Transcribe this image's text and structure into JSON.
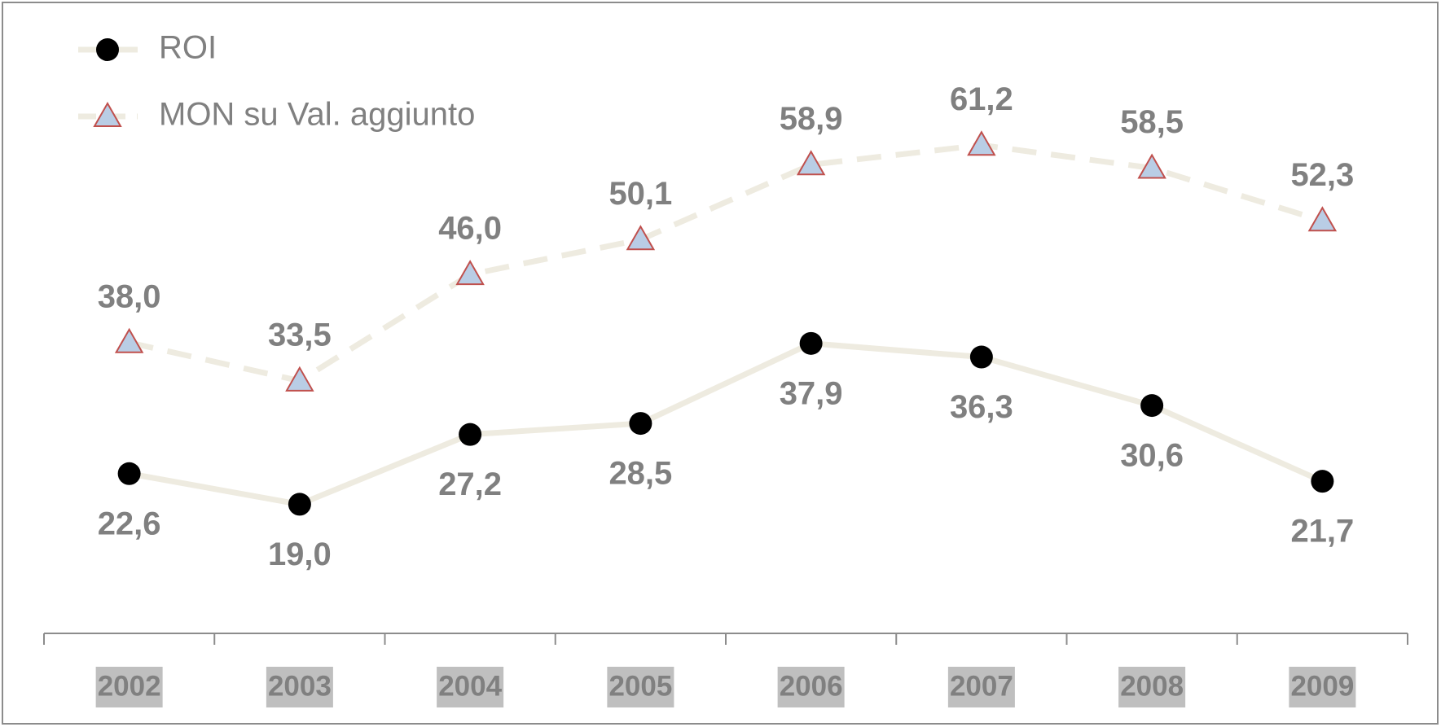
{
  "chart_data": {
    "type": "line",
    "categories": [
      "2002",
      "2003",
      "2004",
      "2005",
      "2006",
      "2007",
      "2008",
      "2009"
    ],
    "series": [
      {
        "name": "ROI",
        "color": "#eeebe0",
        "marker": "circle",
        "marker_color": "#000000",
        "dashed": false,
        "label_position": "below",
        "values": [
          22.6,
          19.0,
          27.2,
          28.5,
          37.9,
          36.3,
          30.6,
          21.7
        ],
        "value_labels": [
          "22,6",
          "19,0",
          "27,2",
          "28,5",
          "37,9",
          "36,3",
          "30,6",
          "21,7"
        ]
      },
      {
        "name": "MON su Val. aggiunto",
        "color": "#eeebe0",
        "marker": "triangle",
        "marker_color": "#b9cde5",
        "marker_edge": "#c0504d",
        "dashed": true,
        "label_position": "above",
        "values": [
          38.0,
          33.5,
          46.0,
          50.1,
          58.9,
          61.2,
          58.5,
          52.3
        ],
        "value_labels": [
          "38,0",
          "33,5",
          "46,0",
          "50,1",
          "58,9",
          "61,2",
          "58,5",
          "52,3"
        ]
      }
    ],
    "ylim": [
      0,
      75
    ],
    "legend": "top-left",
    "grid": false
  }
}
